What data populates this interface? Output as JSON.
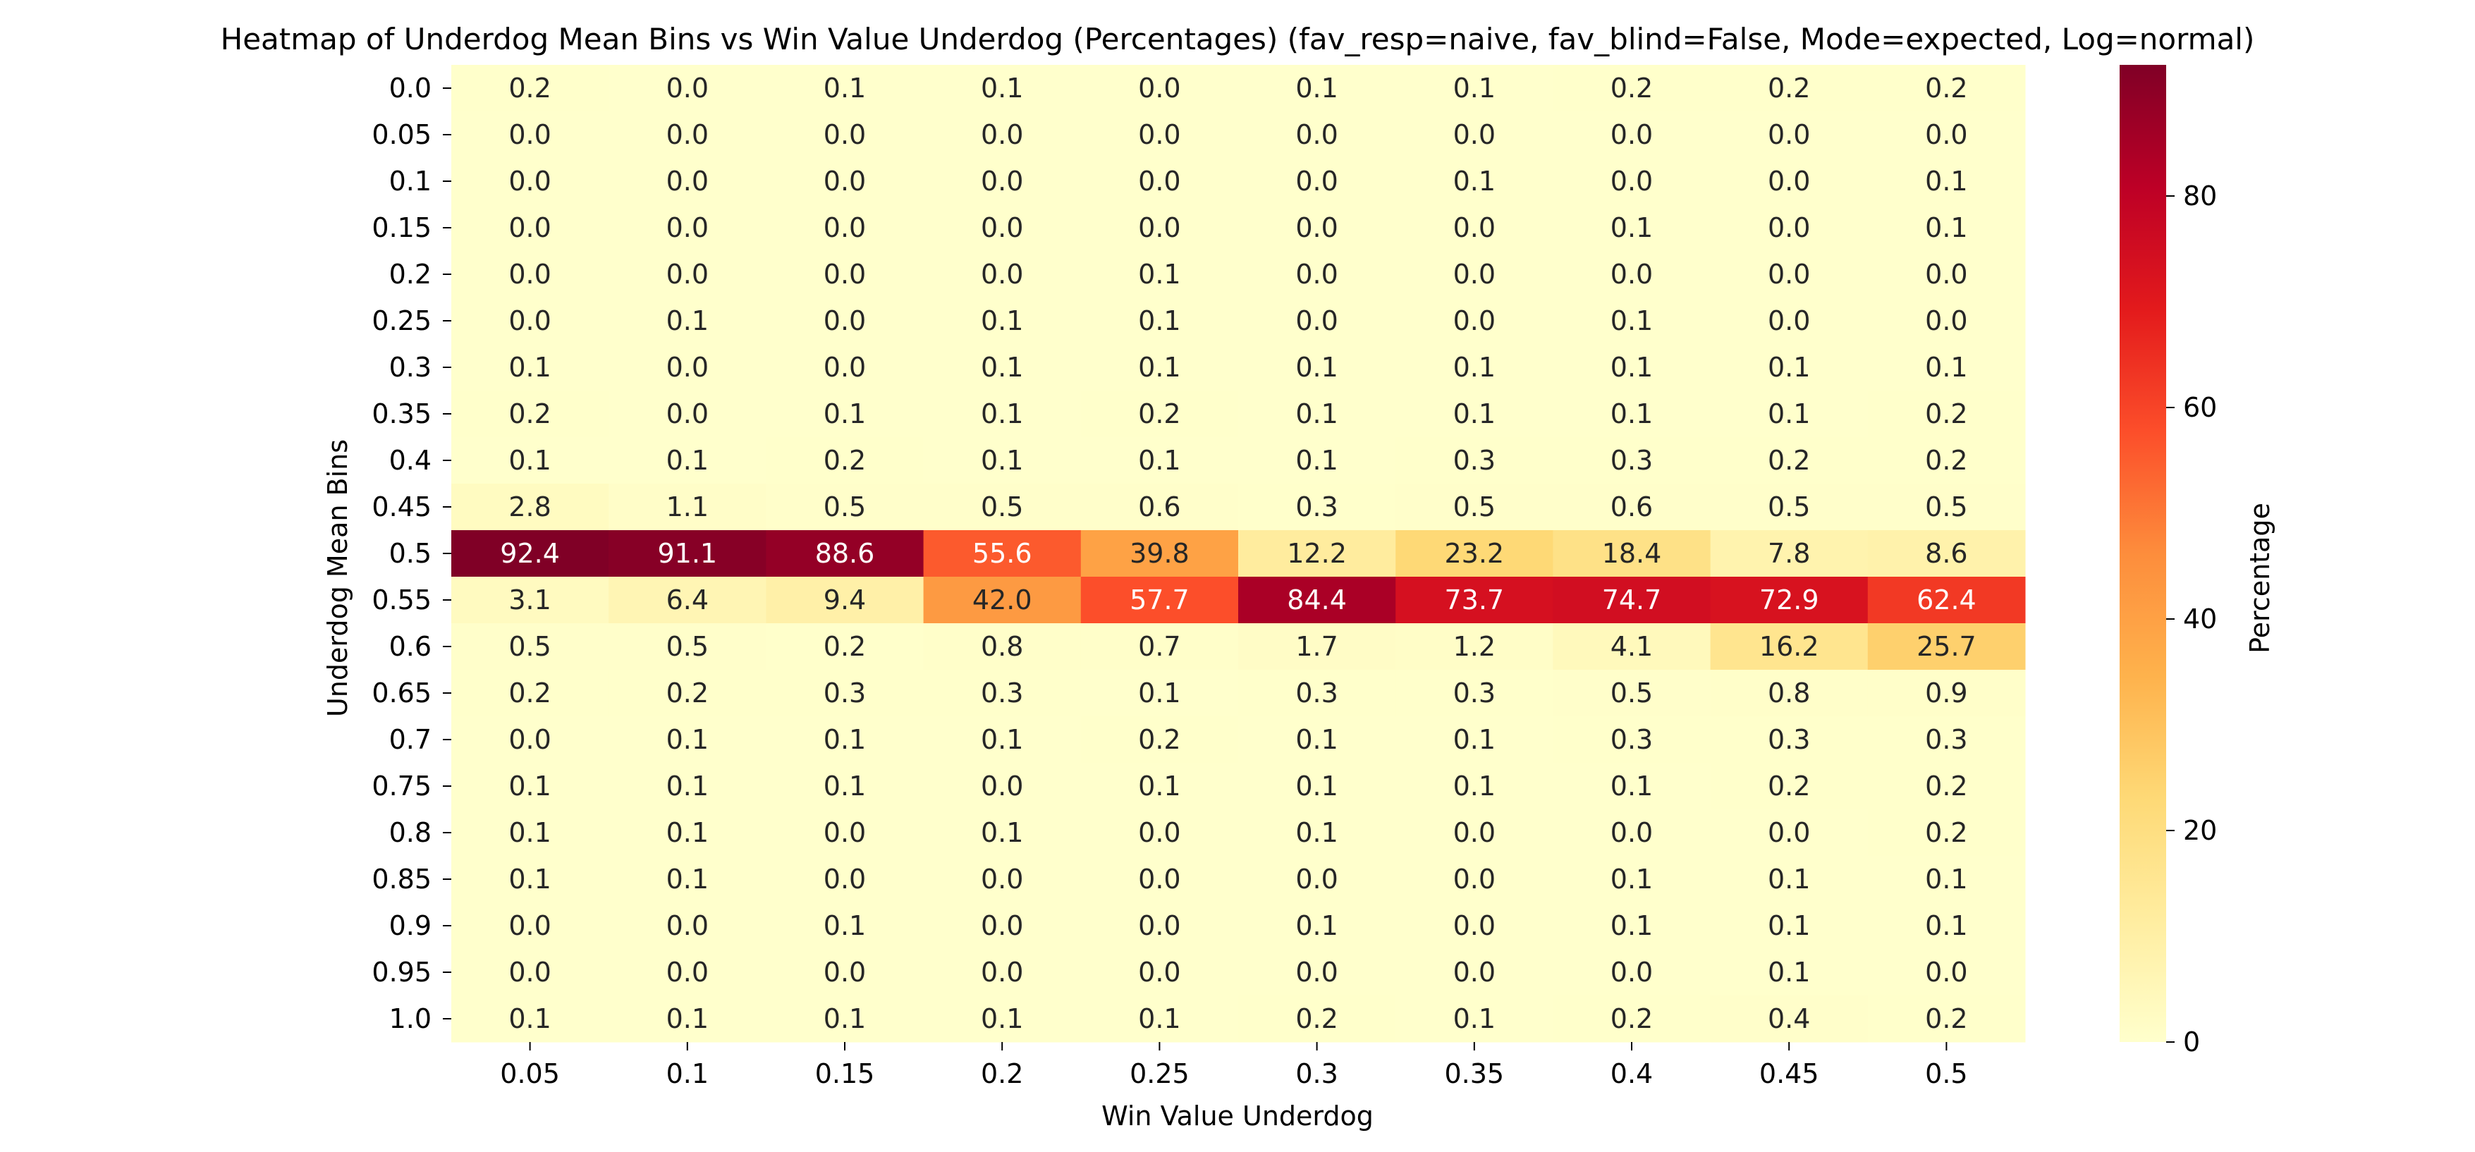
{
  "chart_data": {
    "type": "heatmap",
    "title": "Heatmap of Underdog Mean Bins vs Win Value Underdog (Percentages)  (fav_resp=naive, fav_blind=False, Mode=expected, Log=normal)",
    "xlabel": "Win Value Underdog",
    "ylabel": "Underdog Mean Bins",
    "colorbar_label": "Percentage",
    "colormap": "YlOrRd",
    "colorbar_range": [
      0,
      92.4
    ],
    "colorbar_ticks": [
      0,
      20,
      40,
      60,
      80
    ],
    "x": [
      "0.05",
      "0.1",
      "0.15",
      "0.2",
      "0.25",
      "0.3",
      "0.35",
      "0.4",
      "0.45",
      "0.5"
    ],
    "y": [
      "0.0",
      "0.05",
      "0.1",
      "0.15",
      "0.2",
      "0.25",
      "0.3",
      "0.35",
      "0.4",
      "0.45",
      "0.5",
      "0.55",
      "0.6",
      "0.65",
      "0.7",
      "0.75",
      "0.8",
      "0.85",
      "0.9",
      "0.95",
      "1.0"
    ],
    "values": [
      [
        0.2,
        0.0,
        0.1,
        0.1,
        0.0,
        0.1,
        0.1,
        0.2,
        0.2,
        0.2
      ],
      [
        0.0,
        0.0,
        0.0,
        0.0,
        0.0,
        0.0,
        0.0,
        0.0,
        0.0,
        0.0
      ],
      [
        0.0,
        0.0,
        0.0,
        0.0,
        0.0,
        0.0,
        0.1,
        0.0,
        0.0,
        0.1
      ],
      [
        0.0,
        0.0,
        0.0,
        0.0,
        0.0,
        0.0,
        0.0,
        0.1,
        0.0,
        0.1
      ],
      [
        0.0,
        0.0,
        0.0,
        0.0,
        0.1,
        0.0,
        0.0,
        0.0,
        0.0,
        0.0
      ],
      [
        0.0,
        0.1,
        0.0,
        0.1,
        0.1,
        0.0,
        0.0,
        0.1,
        0.0,
        0.0
      ],
      [
        0.1,
        0.0,
        0.0,
        0.1,
        0.1,
        0.1,
        0.1,
        0.1,
        0.1,
        0.1
      ],
      [
        0.2,
        0.0,
        0.1,
        0.1,
        0.2,
        0.1,
        0.1,
        0.1,
        0.1,
        0.2
      ],
      [
        0.1,
        0.1,
        0.2,
        0.1,
        0.1,
        0.1,
        0.3,
        0.3,
        0.2,
        0.2
      ],
      [
        2.8,
        1.1,
        0.5,
        0.5,
        0.6,
        0.3,
        0.5,
        0.6,
        0.5,
        0.5
      ],
      [
        92.4,
        91.1,
        88.6,
        55.6,
        39.8,
        12.2,
        23.2,
        18.4,
        7.8,
        8.6
      ],
      [
        3.1,
        6.4,
        9.4,
        42.0,
        57.7,
        84.4,
        73.7,
        74.7,
        72.9,
        62.4
      ],
      [
        0.5,
        0.5,
        0.2,
        0.8,
        0.7,
        1.7,
        1.2,
        4.1,
        16.2,
        25.7
      ],
      [
        0.2,
        0.2,
        0.3,
        0.3,
        0.1,
        0.3,
        0.3,
        0.5,
        0.8,
        0.9
      ],
      [
        0.0,
        0.1,
        0.1,
        0.1,
        0.2,
        0.1,
        0.1,
        0.3,
        0.3,
        0.3
      ],
      [
        0.1,
        0.1,
        0.1,
        0.0,
        0.1,
        0.1,
        0.1,
        0.1,
        0.2,
        0.2
      ],
      [
        0.1,
        0.1,
        0.0,
        0.1,
        0.0,
        0.1,
        0.0,
        0.0,
        0.0,
        0.2
      ],
      [
        0.1,
        0.1,
        0.0,
        0.0,
        0.0,
        0.0,
        0.0,
        0.1,
        0.1,
        0.1
      ],
      [
        0.0,
        0.0,
        0.1,
        0.0,
        0.0,
        0.1,
        0.0,
        0.1,
        0.1,
        0.1
      ],
      [
        0.0,
        0.0,
        0.0,
        0.0,
        0.0,
        0.0,
        0.0,
        0.0,
        0.1,
        0.0
      ],
      [
        0.1,
        0.1,
        0.1,
        0.1,
        0.1,
        0.2,
        0.1,
        0.2,
        0.4,
        0.2
      ]
    ]
  }
}
